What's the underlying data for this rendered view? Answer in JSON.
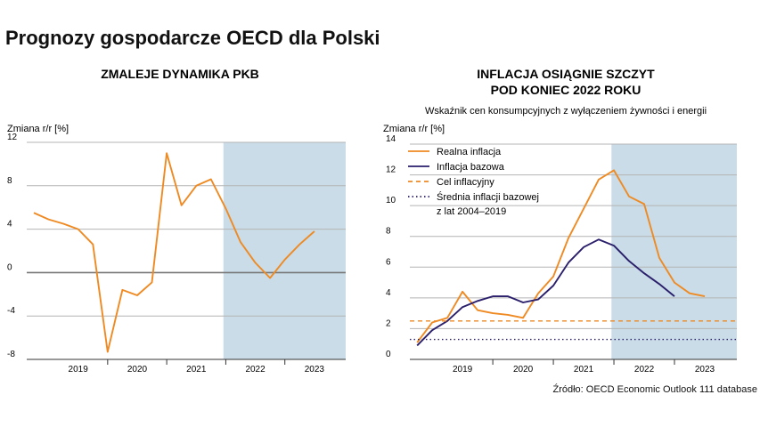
{
  "title": "Prognozy gospodarcze OECD dla Polski",
  "source": "Źródło: OECD Economic Outlook 111 database",
  "chart_data": [
    {
      "type": "line",
      "title": "ZMALEJE DYNAMIKA PKB",
      "ylabel": "Zmiana r/r [%]",
      "ylim": [
        -8,
        12
      ],
      "yticks": [
        "12",
        "8",
        "4",
        "0",
        "-4",
        "-8"
      ],
      "xlim": [
        2018.5,
        2023.9
      ],
      "xticks": [
        "2019",
        "2020",
        "2021",
        "2022",
        "2023"
      ],
      "forecast_from": 2021.83,
      "grid": true,
      "series": [
        {
          "color": "#ef8a23",
          "x": [
            2018.62,
            2018.87,
            2019.12,
            2019.37,
            2019.62,
            2019.87,
            2020.12,
            2020.37,
            2020.62,
            2020.87,
            2021.12,
            2021.37,
            2021.62,
            2021.87,
            2022.12,
            2022.37,
            2022.62,
            2022.87,
            2023.12,
            2023.37,
            2023.62,
            2023.87
          ],
          "y": [
            5.5,
            4.9,
            4.5,
            4.0,
            2.6,
            -7.3,
            -1.6,
            -2.1,
            -0.9,
            11.0,
            6.2,
            8.0,
            8.6,
            5.9,
            2.8,
            0.9,
            -0.5,
            1.2,
            2.6,
            3.8,
            null,
            null
          ]
        }
      ]
    },
    {
      "type": "line",
      "title": [
        "INFLACJA OSIĄGNIE SZCZYT",
        "POD KONIEC 2022 ROKU"
      ],
      "subtitle": "Wskaźnik cen konsumpcyjnych z wyłączeniem żywności i energii",
      "ylabel": "Zmiana r/r [%]",
      "ylim": [
        0,
        14
      ],
      "yticks": [
        "14",
        "12",
        "10",
        "8",
        "6",
        "4",
        "2",
        "0"
      ],
      "xlim": [
        2018.5,
        2023.9
      ],
      "xticks": [
        "2019",
        "2020",
        "2021",
        "2022",
        "2023"
      ],
      "forecast_from": 2021.83,
      "grid": true,
      "legend_position": "top-left",
      "series": [
        {
          "name": "Realna inflacja",
          "color": "#ef8a23",
          "style": "solid",
          "x": [
            2018.62,
            2018.87,
            2019.12,
            2019.37,
            2019.62,
            2019.87,
            2020.12,
            2020.37,
            2020.62,
            2020.87,
            2021.12,
            2021.37,
            2021.62,
            2021.87,
            2022.12,
            2022.37,
            2022.62,
            2022.87,
            2023.12,
            2023.37
          ],
          "y": [
            1.1,
            2.4,
            2.7,
            4.4,
            3.2,
            3.0,
            2.9,
            2.7,
            4.3,
            5.4,
            7.9,
            9.8,
            11.7,
            12.3,
            10.6,
            10.1,
            6.6,
            5.0,
            4.3,
            4.1
          ]
        },
        {
          "name": "Inflacja bazowa",
          "color": "#2a1f6b",
          "style": "solid",
          "x": [
            2018.62,
            2018.87,
            2019.12,
            2019.37,
            2019.62,
            2019.87,
            2020.12,
            2020.37,
            2020.62,
            2020.87,
            2021.12,
            2021.37,
            2021.62,
            2021.87,
            2022.12,
            2022.37,
            2022.62,
            2022.87,
            2023.12,
            2023.37
          ],
          "y": [
            0.9,
            1.9,
            2.5,
            3.4,
            3.8,
            4.1,
            4.1,
            3.7,
            3.9,
            4.8,
            6.3,
            7.3,
            7.8,
            7.4,
            6.4,
            5.6,
            4.9,
            4.1,
            null,
            null
          ]
        },
        {
          "name": "Cel inflacyjny",
          "color": "#ef8a23",
          "style": "dashed",
          "y_const": 2.5
        },
        {
          "name": [
            "Średnia inflacji bazowej",
            "z lat 2004–2019"
          ],
          "color": "#2a1f6b",
          "style": "dotted",
          "y_const": 1.3
        }
      ]
    }
  ]
}
